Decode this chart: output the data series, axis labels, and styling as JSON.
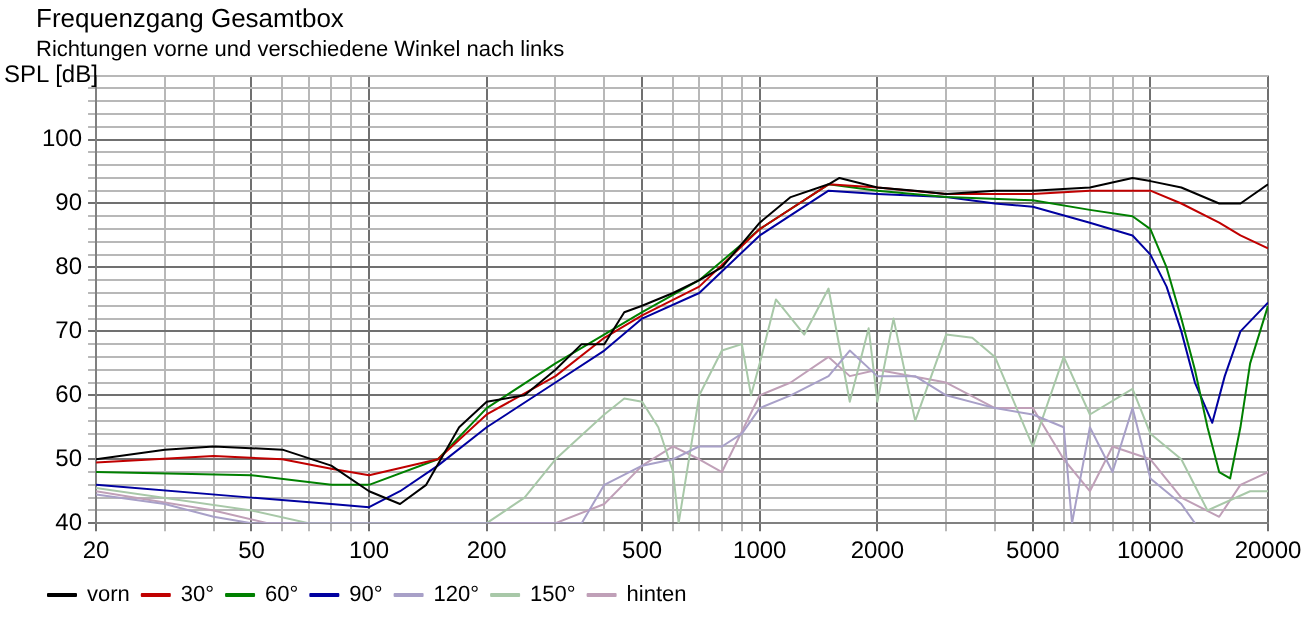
{
  "chart_data": {
    "type": "line",
    "title": "Frequenzgang Gesamtbox",
    "subtitle": "Richtungen vorne und verschiedene Winkel nach links",
    "ylabel": "SPL [dB]",
    "log": "x",
    "xlim": [
      20,
      20000
    ],
    "ylim": [
      40,
      110
    ],
    "xticks": [
      20,
      {
        "value": 30,
        "label": null
      },
      {
        "value": 40,
        "label": null
      },
      50,
      {
        "value": 60,
        "label": null
      },
      {
        "value": 70,
        "label": null
      },
      {
        "value": 80,
        "label": null
      },
      {
        "value": 90,
        "label": null
      },
      100,
      200,
      {
        "value": 300,
        "label": null
      },
      {
        "value": 400,
        "label": null
      },
      500,
      {
        "value": 600,
        "label": null
      },
      {
        "value": 700,
        "label": null
      },
      {
        "value": 800,
        "label": null
      },
      {
        "value": 900,
        "label": null
      },
      1000,
      2000,
      {
        "value": 3000,
        "label": null
      },
      {
        "value": 4000,
        "label": null
      },
      5000,
      {
        "value": 6000,
        "label": null
      },
      {
        "value": 7000,
        "label": null
      },
      {
        "value": 8000,
        "label": null
      },
      {
        "value": 9000,
        "label": null
      },
      10000,
      20000
    ],
    "yticks": [
      40,
      {
        "value": 42,
        "label": null
      },
      {
        "value": 44,
        "label": null
      },
      {
        "value": 46,
        "label": null
      },
      {
        "value": 48,
        "label": null
      },
      50,
      {
        "value": 52,
        "label": null
      },
      {
        "value": 54,
        "label": null
      },
      {
        "value": 56,
        "label": null
      },
      {
        "value": 58,
        "label": null
      },
      60,
      {
        "value": 62,
        "label": null
      },
      {
        "value": 64,
        "label": null
      },
      {
        "value": 66,
        "label": null
      },
      {
        "value": 68,
        "label": null
      },
      70,
      {
        "value": 72,
        "label": null
      },
      {
        "value": 74,
        "label": null
      },
      {
        "value": 76,
        "label": null
      },
      {
        "value": 78,
        "label": null
      },
      80,
      {
        "value": 82,
        "label": null
      },
      {
        "value": 84,
        "label": null
      },
      {
        "value": 86,
        "label": null
      },
      {
        "value": 88,
        "label": null
      },
      90,
      {
        "value": 92,
        "label": null
      },
      {
        "value": 94,
        "label": null
      },
      {
        "value": 96,
        "label": null
      },
      {
        "value": 98,
        "label": null
      },
      100,
      {
        "value": 102,
        "label": null
      },
      {
        "value": 104,
        "label": null
      },
      {
        "value": 106,
        "label": null
      },
      {
        "value": 108,
        "label": null
      },
      {
        "value": 110,
        "label": null
      }
    ],
    "grid": true,
    "legend": "bottom",
    "marker": "none",
    "line_style": "solid",
    "series": [
      {
        "name": "vorn",
        "color": "#000000",
        "x": [
          20,
          30,
          40,
          60,
          80,
          100,
          120,
          140,
          170,
          200,
          250,
          300,
          350,
          400,
          450,
          500,
          600,
          700,
          800,
          1000,
          1200,
          1500,
          1600,
          2000,
          2500,
          3000,
          4000,
          5000,
          7000,
          9000,
          10000,
          12000,
          15000,
          17000,
          20000
        ],
        "values": [
          50,
          51.5,
          52,
          51.5,
          49,
          45,
          43,
          46,
          55,
          59,
          60,
          64,
          68,
          68,
          73,
          74,
          76,
          78,
          80,
          87,
          91,
          93,
          94,
          92.5,
          92,
          91.5,
          92,
          92,
          92.5,
          94,
          93.5,
          92.5,
          90,
          90,
          93
        ]
      },
      {
        "name": "30°",
        "color": "#c00000",
        "x": [
          20,
          40,
          60,
          80,
          100,
          150,
          200,
          300,
          400,
          500,
          700,
          1000,
          1500,
          2000,
          3000,
          5000,
          7000,
          10000,
          12000,
          15000,
          17000,
          20000
        ],
        "values": [
          49.5,
          50.5,
          50,
          48.5,
          47.5,
          50,
          57,
          63,
          69,
          72.5,
          77,
          86,
          93,
          92.5,
          91.5,
          91.5,
          92,
          92,
          90,
          87,
          85,
          83
        ]
      },
      {
        "name": "60°",
        "color": "#008000",
        "x": [
          20,
          50,
          80,
          100,
          150,
          200,
          300,
          500,
          700,
          1000,
          1500,
          2000,
          3000,
          5000,
          7000,
          9000,
          10000,
          11000,
          12000,
          13000,
          14000,
          15000,
          16000,
          17000,
          18000,
          20000
        ],
        "values": [
          48,
          47.5,
          46,
          46,
          50,
          58,
          65,
          73,
          78,
          86,
          93,
          92,
          91,
          90.5,
          89,
          88,
          86,
          80,
          72,
          64,
          55,
          48,
          47,
          55,
          65,
          74
        ]
      },
      {
        "name": "90°",
        "color": "#0000a0",
        "x": [
          20,
          50,
          80,
          100,
          120,
          150,
          200,
          300,
          400,
          500,
          700,
          1000,
          1500,
          2000,
          3000,
          4000,
          5000,
          7000,
          9000,
          10000,
          11000,
          12000,
          13000,
          14400,
          15500,
          17000,
          20000
        ],
        "values": [
          46,
          44,
          43,
          42.5,
          45,
          49,
          55,
          62,
          67,
          72,
          76,
          85,
          92,
          91.5,
          91,
          90,
          89.5,
          87,
          85,
          82,
          77,
          70,
          62,
          55.7,
          63,
          70,
          74.5
        ]
      },
      {
        "name": "120°",
        "color": "#a8a0c8",
        "x": [
          20,
          30,
          40,
          50,
          350,
          400,
          500,
          600,
          700,
          800,
          900,
          1000,
          1200,
          1500,
          1700,
          2000,
          2500,
          3000,
          4000,
          5000,
          6000,
          6300,
          7000,
          8000,
          9000,
          10000,
          12000,
          13000
        ],
        "values": [
          44.5,
          43,
          41,
          40,
          40,
          46,
          49,
          50,
          52,
          52,
          54,
          58,
          60,
          63,
          67,
          63,
          63,
          60,
          58,
          57,
          55,
          40,
          55,
          48,
          58,
          47,
          43,
          40
        ]
      },
      {
        "name": "150°",
        "color": "#a8c8a8",
        "x": [
          20,
          50,
          70,
          200,
          250,
          300,
          400,
          450,
          500,
          550,
          600,
          620,
          700,
          800,
          900,
          950,
          1000,
          1100,
          1300,
          1500,
          1700,
          1900,
          2000,
          2200,
          2500,
          3000,
          3500,
          4000,
          5000,
          6000,
          7000,
          9000,
          10000,
          12000,
          14000,
          18000,
          20000
        ],
        "values": [
          45.5,
          42,
          40,
          40,
          44,
          50,
          57,
          59.5,
          59,
          55,
          48,
          40,
          60,
          67,
          68,
          60,
          65,
          75,
          69.5,
          76.7,
          59,
          70.5,
          59,
          72,
          56,
          69.5,
          69,
          66,
          52,
          66,
          57,
          61,
          54,
          50,
          42,
          45,
          45
        ]
      },
      {
        "name": "hinten",
        "color": "#c0a0b8",
        "x": [
          20,
          40,
          55,
          300,
          400,
          500,
          600,
          700,
          800,
          1000,
          1200,
          1500,
          1700,
          2000,
          3000,
          4000,
          5000,
          6000,
          7000,
          8000,
          10000,
          12000,
          15000,
          17000,
          20000
        ],
        "values": [
          45,
          42,
          40,
          40,
          43,
          49,
          52,
          50,
          48,
          60,
          62,
          66,
          63,
          64,
          62,
          58,
          58,
          50,
          45,
          52,
          50,
          44,
          41,
          46,
          48
        ]
      }
    ]
  }
}
